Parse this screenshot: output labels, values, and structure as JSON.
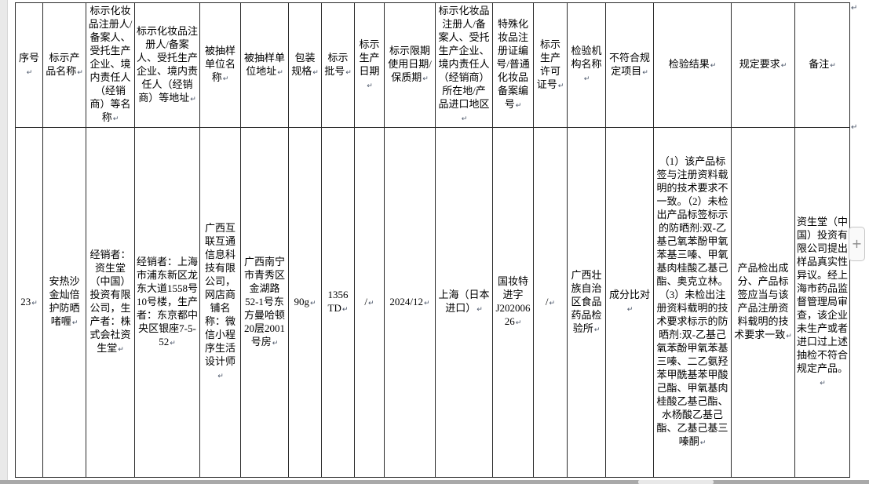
{
  "table": {
    "columns": [
      {
        "key": "seq",
        "label": "序号"
      },
      {
        "key": "product-name",
        "label": "标示产品名称"
      },
      {
        "key": "registrant-name",
        "label": "标示化妆品注册人/备案人、受托生产企业、境内责任人（经销商）等名称"
      },
      {
        "key": "registrant-address",
        "label": "标示化妆品注册人/备案人、受托生产企业、境内责任人（经销商）等地址"
      },
      {
        "key": "sampled-unit-name",
        "label": "被抽样单位名称"
      },
      {
        "key": "sampled-unit-address",
        "label": "被抽样单位地址"
      },
      {
        "key": "packaging-spec",
        "label": "包装规格"
      },
      {
        "key": "batch-no",
        "label": "标示批号"
      },
      {
        "key": "production-date",
        "label": "标示生产日期"
      },
      {
        "key": "expiry-date",
        "label": "标示限期使用日期/保质期"
      },
      {
        "key": "origin-region",
        "label": "标示化妆品注册人/备案人、受托生产企业、境内责任人（经销商）所在地/产品进口地区"
      },
      {
        "key": "registration-no",
        "label": "特殊化妆品注册证编号/普通化妆品备案编号"
      },
      {
        "key": "production-license-no",
        "label": "标示生产许可证号"
      },
      {
        "key": "inspection-agency",
        "label": "检验机构名称"
      },
      {
        "key": "nonconforming-item",
        "label": "不符合规定项目"
      },
      {
        "key": "inspection-result",
        "label": "检验结果"
      },
      {
        "key": "specified-requirement",
        "label": "规定要求"
      },
      {
        "key": "remarks",
        "label": "备注"
      }
    ],
    "rows": [
      [
        "23",
        "安热沙金灿倍护防晒啫喱",
        "经销者：资生堂（中国）投资有限公司，生产者：株式会社资生堂",
        "经销者：上海市浦东新区龙东大道1558号10号楼，生产者：东京都中央区银座7-5-52",
        "广西互联互通信息科技有限公司，网店商铺名称：微信小程序生活设计师",
        "广西南宁市青秀区金湖路52-1号东方曼哈顿20层2001号房",
        "90g",
        "1356\nTD",
        "/",
        "2024/12",
        "上海（日本进口）",
        "国妆特进字J20200626",
        "/",
        "广西壮族自治区食品药品检验所",
        "成分比对",
        "（1）该产品标签与注册资料载明的技术要求不一致。（2）未检出产品标签标示的防晒剂:双-乙基己氧苯酚甲氧苯基三嗪、甲氧基肉桂酸乙基己酯、奥克立林。（3）未检出注册资料载明的技术要求标示的防晒剂:双-乙基己氧苯酚甲氧苯基三嗪、二乙氨羟苯甲酰基苯甲酸己酯、甲氧基肉桂酸乙基己酯、水杨酸乙基己酯、乙基己基三嗪酮",
        "产品检出成分、产品标签应当与该产品注册资料载明的技术要求一致",
        "资生堂（中国）投资有限公司提出样品真实性异议。经上海市药品监督管理局审查，该企业未生产或者进口过上述抽检不符合规定产品。"
      ]
    ]
  },
  "ui": {
    "paragraph_mark": "↵",
    "plus_button": "+"
  }
}
